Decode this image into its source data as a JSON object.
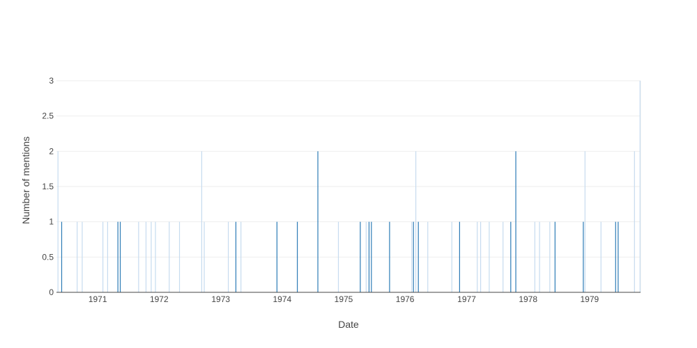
{
  "chart_data": {
    "type": "bar",
    "title": "",
    "xlabel": "Date",
    "ylabel": "Number of mentions",
    "x_range": [
      "1970-05-01",
      "1979-10-31"
    ],
    "ylim": [
      0,
      3
    ],
    "y_ticks": [
      {
        "value": 0,
        "label": "0"
      },
      {
        "value": 0.5,
        "label": "0.5"
      },
      {
        "value": 1,
        "label": "1"
      },
      {
        "value": 1.5,
        "label": "1.5"
      },
      {
        "value": 2,
        "label": "2"
      },
      {
        "value": 2.5,
        "label": "2.5"
      },
      {
        "value": 3,
        "label": "3"
      }
    ],
    "x_ticks": [
      {
        "value": "1971-01-01",
        "label": "1971"
      },
      {
        "value": "1972-01-01",
        "label": "1972"
      },
      {
        "value": "1973-01-01",
        "label": "1973"
      },
      {
        "value": "1974-01-01",
        "label": "1974"
      },
      {
        "value": "1975-01-01",
        "label": "1975"
      },
      {
        "value": "1976-01-01",
        "label": "1976"
      },
      {
        "value": "1977-01-01",
        "label": "1977"
      },
      {
        "value": "1978-01-01",
        "label": "1978"
      },
      {
        "value": "1979-01-01",
        "label": "1979"
      }
    ],
    "grid": true,
    "legend": "none",
    "colors": {
      "dark_bar": "#2c7bb6",
      "light_bar": "#c6dbef",
      "grid": "#eeeeee",
      "axis": "#444444"
    },
    "series": [
      {
        "color": "#2c7bb6",
        "points": [
          {
            "x": "1970-06-01",
            "y": 1
          },
          {
            "x": "1971-05-01",
            "y": 1
          },
          {
            "x": "1971-05-15",
            "y": 1
          },
          {
            "x": "1973-04-01",
            "y": 1
          },
          {
            "x": "1973-12-01",
            "y": 1
          },
          {
            "x": "1974-04-01",
            "y": 1
          },
          {
            "x": "1974-08-01",
            "y": 2
          },
          {
            "x": "1975-04-10",
            "y": 1
          },
          {
            "x": "1975-06-01",
            "y": 1
          },
          {
            "x": "1975-06-15",
            "y": 1
          },
          {
            "x": "1975-10-01",
            "y": 1
          },
          {
            "x": "1976-02-20",
            "y": 1
          },
          {
            "x": "1976-03-20",
            "y": 1
          },
          {
            "x": "1976-11-20",
            "y": 1
          },
          {
            "x": "1977-09-20",
            "y": 1
          },
          {
            "x": "1977-10-20",
            "y": 2
          },
          {
            "x": "1978-06-10",
            "y": 1
          },
          {
            "x": "1978-11-25",
            "y": 1
          },
          {
            "x": "1979-06-05",
            "y": 1
          },
          {
            "x": "1979-06-20",
            "y": 1
          }
        ]
      },
      {
        "color": "#c6dbef",
        "points": [
          {
            "x": "1970-05-10",
            "y": 2
          },
          {
            "x": "1970-09-01",
            "y": 1
          },
          {
            "x": "1970-10-01",
            "y": 1
          },
          {
            "x": "1971-02-01",
            "y": 1
          },
          {
            "x": "1971-03-01",
            "y": 1
          },
          {
            "x": "1971-09-01",
            "y": 1
          },
          {
            "x": "1971-10-15",
            "y": 1
          },
          {
            "x": "1971-11-15",
            "y": 1
          },
          {
            "x": "1971-12-10",
            "y": 1
          },
          {
            "x": "1972-03-01",
            "y": 1
          },
          {
            "x": "1972-05-01",
            "y": 1
          },
          {
            "x": "1972-09-10",
            "y": 2
          },
          {
            "x": "1972-09-25",
            "y": 1
          },
          {
            "x": "1973-02-15",
            "y": 1
          },
          {
            "x": "1973-05-01",
            "y": 1
          },
          {
            "x": "1974-12-01",
            "y": 1
          },
          {
            "x": "1975-05-15",
            "y": 1
          },
          {
            "x": "1976-02-10",
            "y": 1
          },
          {
            "x": "1976-03-05",
            "y": 2
          },
          {
            "x": "1976-05-15",
            "y": 1
          },
          {
            "x": "1976-10-05",
            "y": 1
          },
          {
            "x": "1977-03-05",
            "y": 1
          },
          {
            "x": "1977-03-25",
            "y": 1
          },
          {
            "x": "1977-05-15",
            "y": 1
          },
          {
            "x": "1977-08-05",
            "y": 1
          },
          {
            "x": "1978-02-10",
            "y": 1
          },
          {
            "x": "1978-03-10",
            "y": 1
          },
          {
            "x": "1978-05-10",
            "y": 1
          },
          {
            "x": "1978-12-05",
            "y": 2
          },
          {
            "x": "1979-03-10",
            "y": 1
          },
          {
            "x": "1979-09-25",
            "y": 2
          },
          {
            "x": "1979-10-28",
            "y": 3
          }
        ]
      }
    ]
  }
}
